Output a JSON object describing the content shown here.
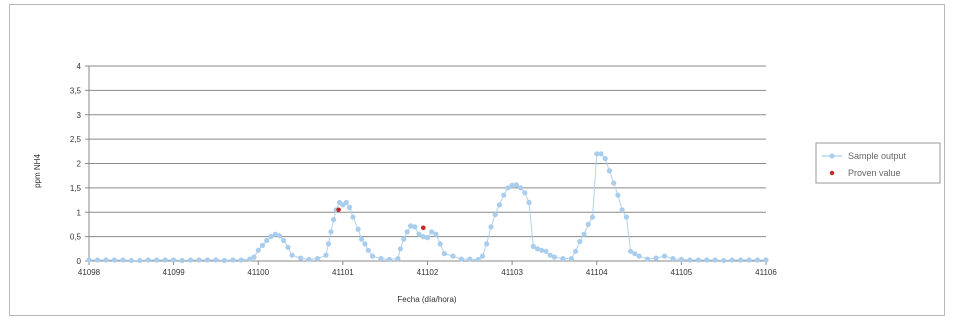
{
  "chart_data": {
    "type": "scatter",
    "title": "",
    "xlabel": "Fecha (día/hora)",
    "ylabel": "ppm NH4",
    "xlim": [
      41098,
      41106
    ],
    "ylim": [
      0,
      4
    ],
    "xticks": [
      41098,
      41099,
      41100,
      41101,
      41102,
      41103,
      41104,
      41105,
      41106
    ],
    "yticks": [
      "0",
      "0,5",
      "1",
      "1,5",
      "2",
      "2,5",
      "3",
      "3,5",
      "4"
    ],
    "ytick_values": [
      0,
      0.5,
      1,
      1.5,
      2,
      2.5,
      3,
      3.5,
      4
    ],
    "grid": "horizontal",
    "legend_position": "right",
    "series": [
      {
        "name": "Sample output",
        "color": "#a9cdec",
        "line": true,
        "points": [
          [
            41098.0,
            0.02
          ],
          [
            41098.1,
            0.02
          ],
          [
            41098.2,
            0.02
          ],
          [
            41098.3,
            0.02
          ],
          [
            41098.4,
            0.02
          ],
          [
            41098.5,
            0.01
          ],
          [
            41098.6,
            0.01
          ],
          [
            41098.7,
            0.02
          ],
          [
            41098.8,
            0.02
          ],
          [
            41098.9,
            0.02
          ],
          [
            41099.0,
            0.02
          ],
          [
            41099.1,
            0.01
          ],
          [
            41099.2,
            0.02
          ],
          [
            41099.3,
            0.02
          ],
          [
            41099.4,
            0.02
          ],
          [
            41099.5,
            0.02
          ],
          [
            41099.6,
            0.01
          ],
          [
            41099.7,
            0.02
          ],
          [
            41099.8,
            0.02
          ],
          [
            41099.9,
            0.04
          ],
          [
            41099.95,
            0.08
          ],
          [
            41100.0,
            0.22
          ],
          [
            41100.05,
            0.32
          ],
          [
            41100.1,
            0.42
          ],
          [
            41100.15,
            0.5
          ],
          [
            41100.2,
            0.55
          ],
          [
            41100.25,
            0.52
          ],
          [
            41100.3,
            0.42
          ],
          [
            41100.35,
            0.28
          ],
          [
            41100.4,
            0.12
          ],
          [
            41100.5,
            0.06
          ],
          [
            41100.6,
            0.03
          ],
          [
            41100.7,
            0.05
          ],
          [
            41100.8,
            0.12
          ],
          [
            41100.83,
            0.35
          ],
          [
            41100.86,
            0.6
          ],
          [
            41100.89,
            0.85
          ],
          [
            41100.92,
            1.05
          ],
          [
            41100.96,
            1.2
          ],
          [
            41101.0,
            1.15
          ],
          [
            41101.04,
            1.2
          ],
          [
            41101.08,
            1.1
          ],
          [
            41101.12,
            0.9
          ],
          [
            41101.18,
            0.65
          ],
          [
            41101.22,
            0.45
          ],
          [
            41101.26,
            0.35
          ],
          [
            41101.3,
            0.22
          ],
          [
            41101.35,
            0.1
          ],
          [
            41101.45,
            0.05
          ],
          [
            41101.55,
            0.03
          ],
          [
            41101.65,
            0.05
          ],
          [
            41101.68,
            0.25
          ],
          [
            41101.72,
            0.45
          ],
          [
            41101.76,
            0.6
          ],
          [
            41101.8,
            0.72
          ],
          [
            41101.85,
            0.7
          ],
          [
            41101.9,
            0.55
          ],
          [
            41101.95,
            0.5
          ],
          [
            41102.0,
            0.48
          ],
          [
            41102.05,
            0.6
          ],
          [
            41102.1,
            0.55
          ],
          [
            41102.15,
            0.35
          ],
          [
            41102.2,
            0.15
          ],
          [
            41102.3,
            0.1
          ],
          [
            41102.4,
            0.04
          ],
          [
            41102.5,
            0.04
          ],
          [
            41102.6,
            0.03
          ],
          [
            41102.65,
            0.1
          ],
          [
            41102.7,
            0.35
          ],
          [
            41102.75,
            0.7
          ],
          [
            41102.8,
            0.95
          ],
          [
            41102.85,
            1.15
          ],
          [
            41102.9,
            1.35
          ],
          [
            41102.95,
            1.5
          ],
          [
            41103.0,
            1.55
          ],
          [
            41103.05,
            1.56
          ],
          [
            41103.1,
            1.5
          ],
          [
            41103.15,
            1.4
          ],
          [
            41103.2,
            1.2
          ],
          [
            41103.25,
            0.3
          ],
          [
            41103.3,
            0.25
          ],
          [
            41103.35,
            0.22
          ],
          [
            41103.4,
            0.2
          ],
          [
            41103.45,
            0.12
          ],
          [
            41103.5,
            0.08
          ],
          [
            41103.6,
            0.05
          ],
          [
            41103.7,
            0.05
          ],
          [
            41103.75,
            0.2
          ],
          [
            41103.8,
            0.4
          ],
          [
            41103.85,
            0.55
          ],
          [
            41103.9,
            0.75
          ],
          [
            41103.95,
            0.9
          ],
          [
            41104.0,
            2.2
          ],
          [
            41104.05,
            2.2
          ],
          [
            41104.1,
            2.1
          ],
          [
            41104.15,
            1.85
          ],
          [
            41104.2,
            1.6
          ],
          [
            41104.25,
            1.35
          ],
          [
            41104.3,
            1.05
          ],
          [
            41104.35,
            0.9
          ],
          [
            41104.4,
            0.2
          ],
          [
            41104.45,
            0.15
          ],
          [
            41104.5,
            0.1
          ],
          [
            41104.6,
            0.04
          ],
          [
            41104.7,
            0.06
          ],
          [
            41104.8,
            0.1
          ],
          [
            41104.9,
            0.05
          ],
          [
            41105.0,
            0.03
          ],
          [
            41105.1,
            0.02
          ],
          [
            41105.2,
            0.02
          ],
          [
            41105.3,
            0.02
          ],
          [
            41105.4,
            0.02
          ],
          [
            41105.5,
            0.01
          ],
          [
            41105.6,
            0.02
          ],
          [
            41105.7,
            0.02
          ],
          [
            41105.8,
            0.02
          ],
          [
            41105.9,
            0.02
          ],
          [
            41106.0,
            0.02
          ]
        ]
      },
      {
        "name": "Proven value",
        "color": "#c22a2a",
        "line": false,
        "points": [
          [
            41100.95,
            1.05
          ],
          [
            41101.95,
            0.68
          ]
        ]
      }
    ]
  }
}
